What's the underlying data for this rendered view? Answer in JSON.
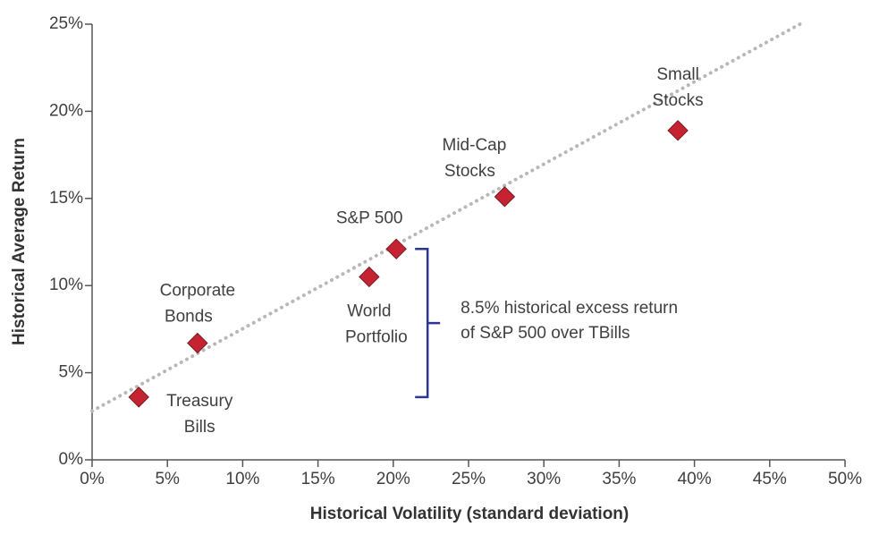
{
  "chart_data": {
    "type": "scatter",
    "xlabel": "Historical Volatility (standard deviation)",
    "ylabel": "Historical Average Return",
    "x": [
      3.1,
      7.0,
      18.4,
      20.2,
      27.4,
      38.9
    ],
    "values": [
      3.6,
      6.7,
      10.5,
      12.1,
      15.1,
      18.9
    ],
    "point_labels": [
      [
        "Treasury",
        "Bills"
      ],
      [
        "Corporate",
        "Bonds"
      ],
      [
        "World",
        "Portfolio"
      ],
      [
        "S&P 500"
      ],
      [
        "Mid-Cap",
        "Stocks"
      ],
      [
        "Small",
        "Stocks"
      ]
    ],
    "color": "#c62332",
    "trend_line": {
      "x": [
        0,
        47
      ],
      "values": [
        2.8,
        25
      ],
      "color": "#b8b8b8"
    },
    "annotation": {
      "lines": [
        "8.5% historical excess return",
        "of S&P 500 over TBills"
      ],
      "color": "#2b3592"
    },
    "xlim": [
      0,
      50
    ],
    "ylim": [
      0,
      25
    ],
    "xticks": [
      {
        "value": 0,
        "label": "0%"
      },
      {
        "value": 5,
        "label": "5%"
      },
      {
        "value": 10,
        "label": "10%"
      },
      {
        "value": 15,
        "label": "15%"
      },
      {
        "value": 20,
        "label": "20%"
      },
      {
        "value": 25,
        "label": "25%"
      },
      {
        "value": 30,
        "label": "30%"
      },
      {
        "value": 35,
        "label": "35%"
      },
      {
        "value": 40,
        "label": "40%"
      },
      {
        "value": 45,
        "label": "45%"
      },
      {
        "value": 50,
        "label": "50%"
      }
    ],
    "yticks": [
      {
        "value": 0,
        "label": "0%"
      },
      {
        "value": 5,
        "label": "5%"
      },
      {
        "value": 10,
        "label": "10%"
      },
      {
        "value": 15,
        "label": "15%"
      },
      {
        "value": 20,
        "label": "20%"
      },
      {
        "value": 25,
        "label": "25%"
      }
    ]
  }
}
